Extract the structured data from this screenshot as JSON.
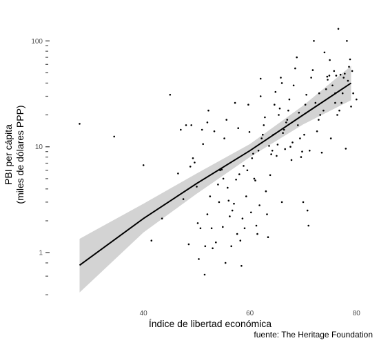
{
  "chart_data": {
    "type": "scatter",
    "title": "",
    "xlabel": "Índice de libertad económica",
    "ylabel_line1": "PBI per cápita",
    "ylabel_line2": "(miles de dólares PPP)",
    "caption": "fuente: The Heritage Foundation",
    "x_scale": "linear",
    "y_scale": "log10",
    "xlim": [
      26,
      81
    ],
    "ylim": [
      0.33,
      160
    ],
    "x_ticks": [
      40,
      60,
      80
    ],
    "x_tick_labels": [
      "40",
      "60",
      "80"
    ],
    "y_ticks": [
      1,
      10,
      100
    ],
    "y_tick_labels": [
      "1",
      "10",
      "100"
    ],
    "y_minor_ticks": [
      0.4,
      0.6,
      0.8,
      2,
      3,
      4,
      5,
      6,
      7,
      8,
      9,
      20,
      30,
      40,
      50,
      60,
      70,
      80,
      90
    ],
    "grid": false,
    "legend": "none",
    "colors": {
      "points": "#000000",
      "line": "#000000",
      "band": "#d3d3d3",
      "ticks": "#4d4d4d"
    },
    "fit": {
      "x": [
        28,
        40,
        50,
        60,
        70,
        79
      ],
      "y": [
        0.76,
        2.1,
        4.5,
        9.2,
        20,
        40
      ],
      "band_lower": [
        0.42,
        1.55,
        3.6,
        8.0,
        16.3,
        27.5
      ],
      "band_upper": [
        1.35,
        2.9,
        5.6,
        10.6,
        24.5,
        58
      ]
    },
    "points": [
      [
        28,
        16.5
      ],
      [
        34.5,
        12.5
      ],
      [
        40,
        6.7
      ],
      [
        41.5,
        1.3
      ],
      [
        43.5,
        2.1
      ],
      [
        45,
        31
      ],
      [
        46.5,
        5.6
      ],
      [
        47,
        14.5
      ],
      [
        47.5,
        3.2
      ],
      [
        48,
        16
      ],
      [
        48.5,
        1.2
      ],
      [
        48.8,
        6.5
      ],
      [
        49,
        16
      ],
      [
        49.3,
        7.8
      ],
      [
        49.6,
        7.1
      ],
      [
        50,
        4.2
      ],
      [
        50.2,
        1.9
      ],
      [
        50.4,
        0.87
      ],
      [
        50.7,
        1.7
      ],
      [
        51,
        14.5
      ],
      [
        51.2,
        10.6
      ],
      [
        51.6,
        1.15
      ],
      [
        52,
        2.3
      ],
      [
        52,
        17
      ],
      [
        52.2,
        22
      ],
      [
        52.5,
        3.4
      ],
      [
        52.8,
        1.7
      ],
      [
        53,
        1.1
      ],
      [
        53.3,
        14
      ],
      [
        53.6,
        1.25
      ],
      [
        54,
        4.4
      ],
      [
        54.2,
        3
      ],
      [
        54.4,
        6
      ],
      [
        54.7,
        6.1
      ],
      [
        54.9,
        1.75
      ],
      [
        55,
        5
      ],
      [
        55.2,
        12
      ],
      [
        55.4,
        0.8
      ],
      [
        55.6,
        18
      ],
      [
        55.8,
        4.1
      ],
      [
        56,
        3.1
      ],
      [
        56.2,
        2.2
      ],
      [
        51.5,
        0.62
      ],
      [
        56.5,
        1.15
      ],
      [
        56.7,
        2.5
      ],
      [
        57,
        2.9
      ],
      [
        57.2,
        26
      ],
      [
        57.4,
        4.9
      ],
      [
        57.6,
        1.5
      ],
      [
        57.8,
        15
      ],
      [
        58,
        5.5
      ],
      [
        58.2,
        1.3
      ],
      [
        58.4,
        0.75
      ],
      [
        58.6,
        2.1
      ],
      [
        58.8,
        6.6
      ],
      [
        59,
        1.7
      ],
      [
        59.3,
        3.4
      ],
      [
        59.5,
        6
      ],
      [
        59.7,
        25
      ],
      [
        59.9,
        13.8
      ],
      [
        60.2,
        2.4
      ],
      [
        60.4,
        7.8
      ],
      [
        60.6,
        8.6
      ],
      [
        60.8,
        5
      ],
      [
        61,
        4.8
      ],
      [
        61.2,
        1.8
      ],
      [
        61.4,
        1.5
      ],
      [
        61.6,
        9.2
      ],
      [
        61.8,
        2.8
      ],
      [
        62,
        30
      ],
      [
        62.2,
        12
      ],
      [
        62.4,
        13
      ],
      [
        62.6,
        16
      ],
      [
        62.8,
        19
      ],
      [
        63,
        3.8
      ],
      [
        63.2,
        2.3
      ],
      [
        63.4,
        1.4
      ],
      [
        63.6,
        10.2
      ],
      [
        63.8,
        5.4
      ],
      [
        64,
        8.5
      ],
      [
        64.2,
        9.2
      ],
      [
        64.4,
        13
      ],
      [
        64.6,
        25
      ],
      [
        64.8,
        33
      ],
      [
        65,
        8.2
      ],
      [
        65.2,
        10.5
      ],
      [
        65.4,
        20
      ],
      [
        65.6,
        23
      ],
      [
        65.8,
        45
      ],
      [
        66,
        3
      ],
      [
        66.2,
        13.5
      ],
      [
        66.4,
        14.5
      ],
      [
        66.6,
        9.5
      ],
      [
        66.8,
        17
      ],
      [
        67,
        18
      ],
      [
        67.2,
        22
      ],
      [
        67.4,
        28
      ],
      [
        67.6,
        10
      ],
      [
        67.8,
        7.5
      ],
      [
        68,
        11
      ],
      [
        68.2,
        38
      ],
      [
        68.5,
        55
      ],
      [
        68.8,
        70
      ],
      [
        69,
        16
      ],
      [
        69.2,
        21
      ],
      [
        69.4,
        12
      ],
      [
        69.6,
        8
      ],
      [
        69.8,
        9
      ],
      [
        70,
        3
      ],
      [
        70.2,
        13
      ],
      [
        70.4,
        25
      ],
      [
        70.6,
        31
      ],
      [
        70.8,
        2.5
      ],
      [
        71,
        1.8
      ],
      [
        71.2,
        9.2
      ],
      [
        71.5,
        45
      ],
      [
        71.8,
        53
      ],
      [
        72,
        100
      ],
      [
        72.3,
        26
      ],
      [
        72.6,
        14
      ],
      [
        72.9,
        18
      ],
      [
        73.2,
        20
      ],
      [
        73.5,
        8.8
      ],
      [
        73.8,
        22
      ],
      [
        74,
        78
      ],
      [
        74.3,
        35
      ],
      [
        74.6,
        43
      ],
      [
        74.9,
        47
      ],
      [
        75.2,
        12
      ],
      [
        75.5,
        38
      ],
      [
        75.8,
        52
      ],
      [
        76,
        26
      ],
      [
        76.2,
        47
      ],
      [
        76.4,
        20
      ],
      [
        76.6,
        130
      ],
      [
        76.8,
        22
      ],
      [
        77,
        48
      ],
      [
        77.2,
        26
      ],
      [
        77.4,
        32
      ],
      [
        77.6,
        45
      ],
      [
        77.8,
        49
      ],
      [
        78,
        9.6
      ],
      [
        78.2,
        100
      ],
      [
        78.4,
        42
      ],
      [
        78.6,
        57
      ],
      [
        78.8,
        67
      ],
      [
        79,
        24
      ],
      [
        79.2,
        52
      ],
      [
        79.4,
        32
      ],
      [
        80,
        28
      ],
      [
        74.5,
        46
      ],
      [
        75,
        66
      ],
      [
        76,
        32
      ],
      [
        73,
        32
      ],
      [
        66,
        40
      ],
      [
        62,
        44
      ]
    ]
  }
}
